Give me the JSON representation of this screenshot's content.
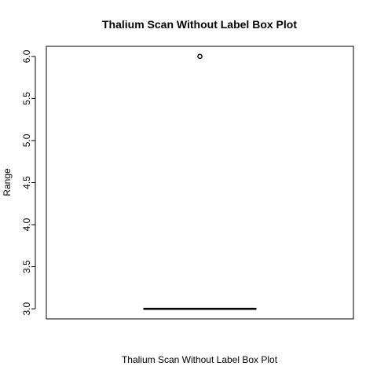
{
  "chart_data": {
    "type": "box",
    "title": "Thalium Scan Without Label Box Plot",
    "xlabel": "Thalium Scan Without Label Box Plot",
    "ylabel": "Range",
    "ylim": [
      2.88,
      6.12
    ],
    "yticks": [
      3.0,
      3.5,
      4.0,
      4.5,
      5.0,
      5.5,
      6.0
    ],
    "ytick_labels": [
      "3.0",
      "3.5",
      "4.0",
      "4.5",
      "5.0",
      "5.5",
      "6.0"
    ],
    "box": {
      "min": 3.0,
      "q1": 3.0,
      "median": 3.0,
      "q3": 3.0,
      "max": 3.0,
      "outliers": [
        6.0
      ]
    },
    "grid": false
  }
}
